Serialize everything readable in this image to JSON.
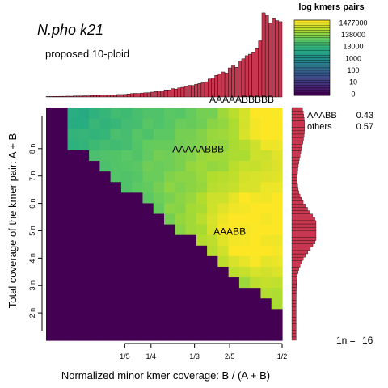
{
  "chart_data": {
    "type": "heatmap",
    "title": "N.pho k21",
    "subtitle": "proposed 10-ploid",
    "xlabel": "Normalized minor kmer coverage: B / (A + B)",
    "ylabel": "Total coverage of the kmer pair: A + B",
    "x_ticks": [
      {
        "label": "1/5",
        "value": 0.2
      },
      {
        "label": "1/4",
        "value": 0.25
      },
      {
        "label": "1/3",
        "value": 0.333
      },
      {
        "label": "2/5",
        "value": 0.4
      },
      {
        "label": "1/2",
        "value": 0.5
      }
    ],
    "y_ticks": [
      {
        "label": "2 n",
        "value": 2
      },
      {
        "label": "3 n",
        "value": 3
      },
      {
        "label": "4 n",
        "value": 4
      },
      {
        "label": "5 n",
        "value": 5
      },
      {
        "label": "6 n",
        "value": 6
      },
      {
        "label": "7 n",
        "value": 7
      },
      {
        "label": "8 n",
        "value": 8
      }
    ],
    "xlim": [
      0.05,
      0.5
    ],
    "ylim_n": [
      1,
      9.5
    ],
    "grid": false,
    "peak_labels": [
      {
        "text": "AAAAABBB",
        "x": 0.34,
        "y_n": 7.95
      },
      {
        "text": "AAABB",
        "x": 0.4,
        "y_n": 4.95
      }
    ],
    "top_histogram_label": "AAAAABBBBB",
    "legend": {
      "title": "log kmers pairs",
      "labels": [
        "1477000",
        "138000",
        "13000",
        "1000",
        "100",
        "10",
        "0"
      ],
      "placement": "top-right"
    },
    "stats": [
      {
        "name": "AAABB",
        "value": "0.43"
      },
      {
        "name": "others",
        "value": "0.57"
      }
    ],
    "coverage_label": "1n =",
    "coverage_value": "16",
    "colors": {
      "empty": "#440154",
      "histogram": "#c8364f",
      "viridis": [
        "#440154",
        "#472d7b",
        "#3b528b",
        "#2c728e",
        "#21918c",
        "#28ae80",
        "#5ec962",
        "#addc30",
        "#fde725"
      ]
    }
  }
}
